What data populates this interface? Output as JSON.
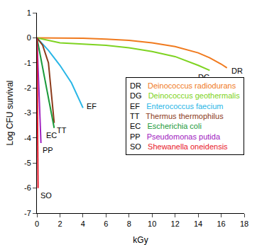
{
  "chart_data": {
    "type": "line",
    "x_label": "kGy",
    "y_label": "Log CFU survival",
    "xlim": [
      0,
      18
    ],
    "xticks": [
      0,
      2,
      4,
      6,
      8,
      10,
      12,
      14,
      16,
      18
    ],
    "ylim": [
      -7,
      1
    ],
    "yticks": [
      -7,
      -6,
      -5,
      -4,
      -3,
      -2,
      -1,
      0,
      1
    ],
    "grid": false,
    "legend": "right",
    "series": [
      {
        "abbreviation": "DR",
        "name": "Deinococcus radiodurans",
        "color": "#f07a1e",
        "x": [
          0,
          2,
          4,
          6,
          8,
          10,
          12,
          14,
          15,
          16,
          16.5
        ],
        "values": [
          0,
          0,
          -0.02,
          -0.05,
          -0.1,
          -0.2,
          -0.35,
          -0.6,
          -0.8,
          -1.05,
          -1.2
        ]
      },
      {
        "abbreviation": "DG",
        "name": "Deinococcus geothermalis",
        "color": "#7ed321",
        "x": [
          0,
          1,
          2,
          4,
          6,
          8,
          10,
          12,
          14,
          15
        ],
        "values": [
          0,
          -0.1,
          -0.2,
          -0.25,
          -0.3,
          -0.4,
          -0.55,
          -0.75,
          -1.1,
          -1.3
        ]
      },
      {
        "abbreviation": "EF",
        "name": "Enterococcus faecium",
        "color": "#29b6e6",
        "x": [
          0,
          1,
          2,
          3,
          4
        ],
        "values": [
          0,
          -0.5,
          -1.1,
          -1.8,
          -2.8
        ]
      },
      {
        "abbreviation": "TT",
        "name": "Thermus thermophilus",
        "color": "#8b3a1a",
        "x": [
          0,
          0.5,
          1,
          1.5
        ],
        "values": [
          0,
          -0.3,
          -1.0,
          -3.4
        ]
      },
      {
        "abbreviation": "EC",
        "name": "Escherichia coli",
        "color": "#1a9a3a",
        "x": [
          0,
          1.5
        ],
        "values": [
          0,
          -3.6
        ]
      },
      {
        "abbreviation": "PP",
        "name": "Pseudomonas putida",
        "color": "#a020c0",
        "x": [
          0,
          0.35
        ],
        "values": [
          0,
          -4.2
        ]
      },
      {
        "abbreviation": "SO",
        "name": "Shewanella oneidensis",
        "color": "#e8182a",
        "x": [
          0,
          0.1
        ],
        "values": [
          0,
          -6.0
        ]
      }
    ]
  }
}
